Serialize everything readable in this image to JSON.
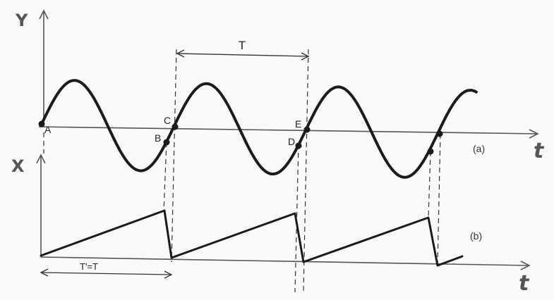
{
  "y_axis_label": "Y",
  "x_axis_label": "X",
  "t_label_top": "t",
  "t_label_bottom": "t",
  "period_label": "T",
  "sweep_period_label": "T'=T",
  "trace_a_label": "(a)",
  "trace_b_label": "(b)",
  "points": {
    "a": "A",
    "b": "B",
    "c": "C",
    "d": "D",
    "e": "E"
  }
}
